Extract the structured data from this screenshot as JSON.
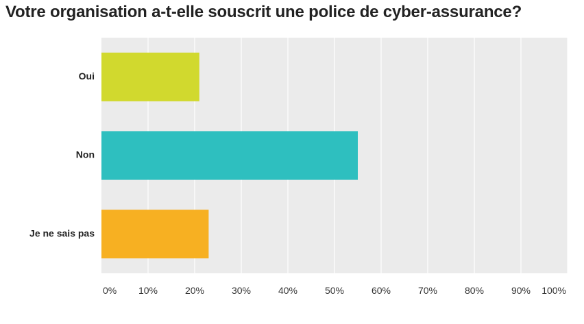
{
  "chart_data": {
    "type": "bar",
    "orientation": "horizontal",
    "title": "Votre organisation a-t-elle souscrit une police de cyber-assurance?",
    "xlabel": "",
    "ylabel": "",
    "categories": [
      "Oui",
      "Non",
      "Je ne sais pas"
    ],
    "values": [
      21,
      55,
      23
    ],
    "colors": [
      "#d1d92e",
      "#2ebfbf",
      "#f7b022"
    ],
    "xlim": [
      0,
      100
    ],
    "x_ticks": [
      "0%",
      "10%",
      "20%",
      "30%",
      "40%",
      "50%",
      "60%",
      "70%",
      "80%",
      "90%",
      "100%"
    ],
    "grid": "vertical",
    "legend": "none",
    "plot_background": "#ebebeb"
  }
}
